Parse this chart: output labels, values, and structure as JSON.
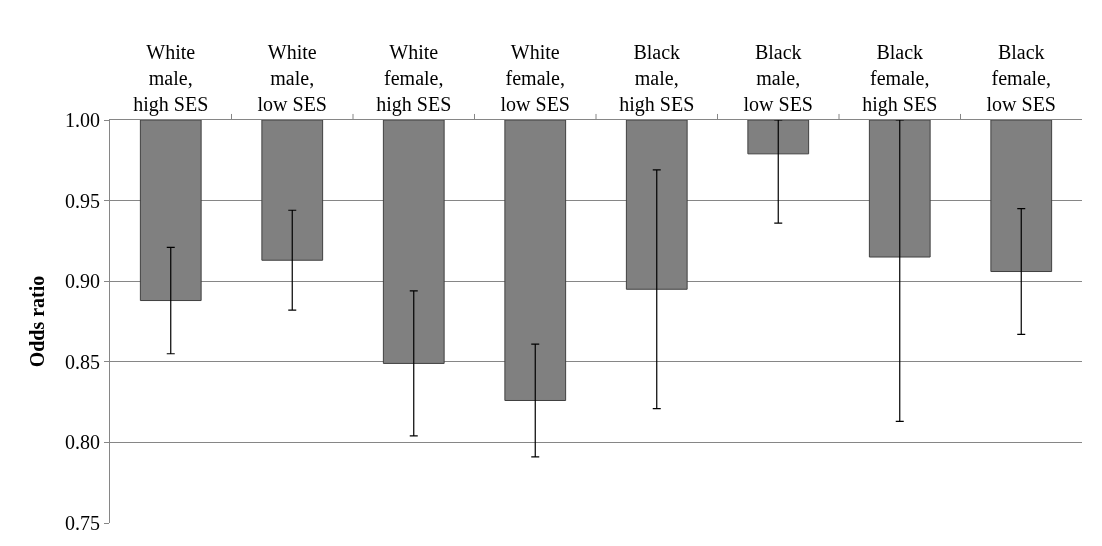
{
  "chart_data": {
    "type": "bar",
    "ylabel": "Odds ratio",
    "categories": [
      "White male, high SES",
      "White male, low SES",
      "White female, high SES",
      "White female, low SES",
      "Black male, high SES",
      "Black male, low SES",
      "Black female, high SES",
      "Black female, low SES"
    ],
    "base": [
      1.0,
      1.0,
      1.0,
      1.0,
      1.0,
      1.0,
      1.0,
      1.0
    ],
    "values": [
      -0.112,
      -0.087,
      -0.151,
      -0.174,
      -0.105,
      -0.021,
      -0.085,
      -0.094
    ],
    "errors": [
      [
        0.855,
        0.921
      ],
      [
        0.882,
        0.944
      ],
      [
        0.804,
        0.894
      ],
      [
        0.791,
        0.861
      ],
      [
        0.821,
        0.969
      ],
      [
        0.936,
        1.0
      ],
      [
        0.813,
        1.0
      ],
      [
        0.867,
        0.945
      ]
    ],
    "color": "#808080",
    "ylim": [
      0.75,
      1.0
    ],
    "yticks": [
      {
        "value": 0.75,
        "label": "0.75"
      },
      {
        "value": 0.8,
        "label": "0.80"
      },
      {
        "value": 0.85,
        "label": "0.85"
      },
      {
        "value": 0.9,
        "label": "0.90"
      },
      {
        "value": 0.95,
        "label": "0.95"
      },
      {
        "value": 1.0,
        "label": "1.00"
      }
    ],
    "grid": "y"
  }
}
